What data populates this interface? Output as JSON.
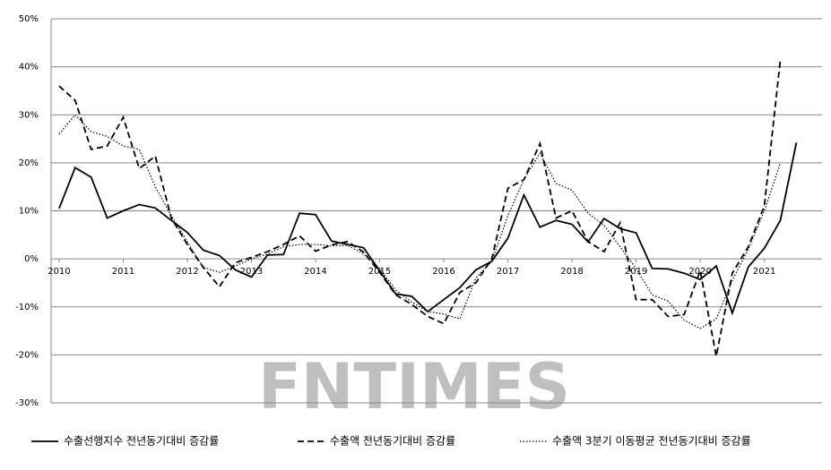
{
  "chart_data": {
    "type": "line",
    "watermark": "FNTIMES",
    "x": [
      2010,
      2010.25,
      2010.5,
      2010.75,
      2011,
      2011.25,
      2011.5,
      2011.75,
      2012,
      2012.25,
      2012.5,
      2012.75,
      2013,
      2013.25,
      2013.5,
      2013.75,
      2014,
      2014.25,
      2014.5,
      2014.75,
      2015,
      2015.25,
      2015.5,
      2015.75,
      2016,
      2016.25,
      2016.5,
      2016.75,
      2017,
      2017.25,
      2017.5,
      2017.75,
      2018,
      2018.25,
      2018.5,
      2018.75,
      2019,
      2019.25,
      2019.5,
      2019.75,
      2020,
      2020.25,
      2020.5,
      2020.75,
      2021,
      2021.25,
      2021.5
    ],
    "series": [
      {
        "name": "수출선행지수 전년동기대비 증감률",
        "color": "#000000",
        "style": "solid",
        "values": [
          10.5,
          19,
          17,
          8.5,
          10,
          11.3,
          10.6,
          8,
          5.5,
          1.8,
          0.7,
          -2.3,
          -3.8,
          0.8,
          0.9,
          9.5,
          9.2,
          3.7,
          3,
          2.3,
          -2.5,
          -7.3,
          -7.8,
          -11,
          -8.5,
          -6,
          -2.3,
          -0.5,
          4.3,
          13.3,
          6.6,
          8,
          7.2,
          3.5,
          8.4,
          6.3,
          5.4,
          -2,
          -2.1,
          -3,
          -4.3,
          -1.5,
          -11.3,
          -1.7,
          2.2,
          8,
          24.2
        ]
      },
      {
        "name": "수출액 전년동기대비 증감률",
        "color": "#000000",
        "style": "dashed",
        "values": [
          36,
          33,
          22.8,
          23.5,
          29.5,
          18.8,
          21.4,
          8.5,
          3,
          -1.8,
          -5.8,
          -0.8,
          0.3,
          1.5,
          3,
          4.8,
          1.6,
          2.9,
          3.6,
          1.4,
          -2.8,
          -7.5,
          -9.5,
          -12,
          -13.5,
          -7,
          -5,
          0,
          14.7,
          16.5,
          24,
          8.5,
          10,
          3.6,
          1.5,
          7.5,
          -8.5,
          -8.5,
          -12,
          -11.6,
          -2.5,
          -20.3,
          -3,
          2.5,
          11,
          41.5,
          null
        ]
      },
      {
        "name": "수출액 3분기 이동평균 전년동기대비 증감률",
        "color": "#000000",
        "style": "dotted",
        "values": [
          26,
          30,
          26.5,
          25.5,
          23.5,
          22.8,
          15,
          9,
          3.5,
          -1.8,
          -2.8,
          -1.5,
          0,
          1,
          2.5,
          3,
          3,
          2.7,
          2.8,
          1,
          -2,
          -6.5,
          -9,
          -11,
          -11.5,
          -12.5,
          -4,
          -0.5,
          9,
          16.5,
          22,
          15.7,
          14.3,
          9.5,
          7,
          2.5,
          -2,
          -7.5,
          -8.8,
          -12.8,
          -14.5,
          -12.5,
          -4.5,
          2,
          10,
          20,
          null
        ]
      }
    ],
    "xlim": [
      2009.875,
      2021.9
    ],
    "ylim": [
      -30,
      50
    ],
    "xticks": [
      2010,
      2011,
      2012,
      2013,
      2014,
      2015,
      2016,
      2017,
      2018,
      2019,
      2020,
      2021
    ],
    "yticks": [
      {
        "value": -30,
        "label": "-30%"
      },
      {
        "value": -20,
        "label": "-20%"
      },
      {
        "value": -10,
        "label": "-10%"
      },
      {
        "value": 0,
        "label": "0%"
      },
      {
        "value": 10,
        "label": "10%"
      },
      {
        "value": 20,
        "label": "20%"
      },
      {
        "value": 30,
        "label": "30%"
      },
      {
        "value": 40,
        "label": "40%"
      },
      {
        "value": 50,
        "label": "50%"
      }
    ],
    "grid": true,
    "legend": "bottom"
  }
}
